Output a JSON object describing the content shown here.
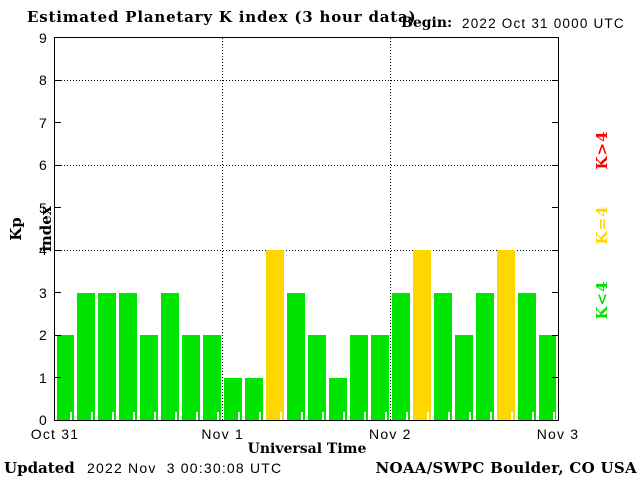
{
  "header": {
    "title": "Estimated Planetary K index (3 hour data)",
    "begin_label": "Begin:",
    "begin_value": "2022 Oct 31 0000 UTC"
  },
  "chart_data": {
    "type": "bar",
    "title": "Estimated Planetary K index (3 hour data)",
    "xlabel": "Universal Time",
    "ylabel": "Kp index",
    "ylim": [
      0,
      9
    ],
    "y_ticks": [
      0,
      1,
      2,
      3,
      4,
      5,
      6,
      7,
      8,
      9
    ],
    "x_tick_labels": [
      "Oct 31",
      "Nov 1",
      "Nov 2",
      "Nov 3"
    ],
    "x_tick_slots": [
      0,
      8,
      16,
      24
    ],
    "grid_y_values": [
      4,
      6,
      8
    ],
    "grid_x_slots": [
      8,
      16
    ],
    "hours_per_bar": 3,
    "values": [
      2,
      3,
      3,
      3,
      2,
      3,
      2,
      2,
      1,
      1,
      4,
      3,
      2,
      1,
      2,
      2,
      3,
      4,
      3,
      2,
      3,
      4,
      3,
      2
    ],
    "colors": {
      "below4": "#00e400",
      "equal4": "#ffd700",
      "above4": "#ff0000"
    }
  },
  "legend": {
    "items": [
      {
        "label": "K>4",
        "color": "#ff0000"
      },
      {
        "label": "K=4",
        "color": "#ffd700"
      },
      {
        "label": "K<4",
        "color": "#00e400"
      }
    ]
  },
  "footer": {
    "updated_label": "Updated",
    "updated_value": "2022 Nov  3 00:30:08 UTC",
    "source": "NOAA/SWPC Boulder, CO USA"
  }
}
